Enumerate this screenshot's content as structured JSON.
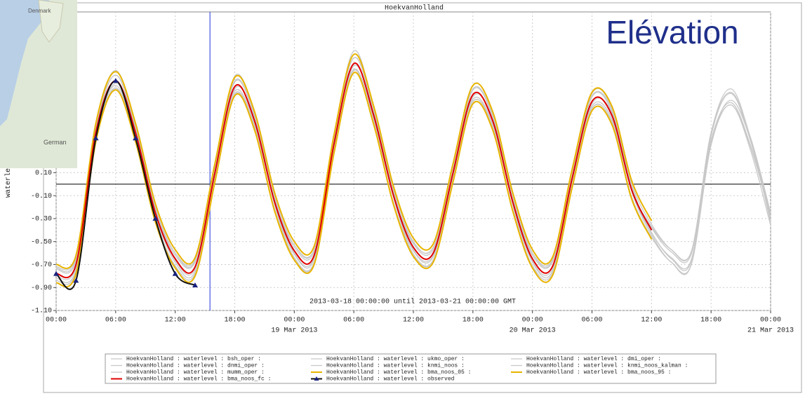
{
  "chart_data": {
    "type": "line",
    "title": "HoekvanHolland",
    "overlay_title": "Elévation",
    "y_label": "waterlevel",
    "annotation": "2013-03-18 00:00:00 until 2013-03-21 00:00:00 GMT",
    "x": [
      "2013-03-18 00:00",
      "2013-03-18 02:00",
      "2013-03-18 04:00",
      "2013-03-18 06:00",
      "2013-03-18 08:00",
      "2013-03-18 10:00",
      "2013-03-18 12:00",
      "2013-03-18 14:00",
      "2013-03-18 16:00",
      "2013-03-18 18:00",
      "2013-03-18 20:00",
      "2013-03-18 22:00",
      "2013-03-19 00:00",
      "2013-03-19 02:00",
      "2013-03-19 04:00",
      "2013-03-19 06:00",
      "2013-03-19 08:00",
      "2013-03-19 10:00",
      "2013-03-19 12:00",
      "2013-03-19 14:00",
      "2013-03-19 16:00",
      "2013-03-19 18:00",
      "2013-03-19 20:00",
      "2013-03-19 22:00",
      "2013-03-20 00:00",
      "2013-03-20 02:00",
      "2013-03-20 04:00",
      "2013-03-20 06:00",
      "2013-03-20 08:00",
      "2013-03-20 10:00",
      "2013-03-20 12:00",
      "2013-03-20 14:00",
      "2013-03-20 16:00",
      "2013-03-20 18:00",
      "2013-03-20 20:00",
      "2013-03-20 22:00",
      "2013-03-21 00:00"
    ],
    "xlim": [
      "2013-03-18 00:00",
      "2013-03-21 00:00"
    ],
    "xticks": [
      {
        "value": "2013-03-18 00:00",
        "label": "00:00"
      },
      {
        "value": "2013-03-18 06:00",
        "label": "06:00"
      },
      {
        "value": "2013-03-18 12:00",
        "label": "12:00"
      },
      {
        "value": "2013-03-18 18:00",
        "label": "18:00"
      },
      {
        "value": "2013-03-19 00:00",
        "label": "00:00"
      },
      {
        "value": "2013-03-19 06:00",
        "label": "06:00"
      },
      {
        "value": "2013-03-19 12:00",
        "label": "12:00"
      },
      {
        "value": "2013-03-19 18:00",
        "label": "18:00"
      },
      {
        "value": "2013-03-20 00:00",
        "label": "00:00"
      },
      {
        "value": "2013-03-20 06:00",
        "label": "06:00"
      },
      {
        "value": "2013-03-20 12:00",
        "label": "12:00"
      },
      {
        "value": "2013-03-20 18:00",
        "label": "18:00"
      },
      {
        "value": "2013-03-21 00:00",
        "label": "00:00"
      }
    ],
    "x_date_labels": [
      {
        "value": "2013-03-19 00:00",
        "label": "19 Mar 2013"
      },
      {
        "value": "2013-03-20 00:00",
        "label": "20 Mar 2013"
      },
      {
        "value": "2013-03-21 00:00",
        "label": "21 Mar 2013"
      }
    ],
    "ylim": [
      -1.1,
      1.5
    ],
    "yticks": [
      {
        "value": -1.1,
        "label": "-1.10"
      },
      {
        "value": -0.9,
        "label": "-0.90"
      },
      {
        "value": -0.7,
        "label": "-0.70"
      },
      {
        "value": -0.5,
        "label": "-0.50"
      },
      {
        "value": -0.3,
        "label": "-0.30"
      },
      {
        "value": -0.1,
        "label": "-0.10"
      },
      {
        "value": 0.1,
        "label": "0.10"
      }
    ],
    "grid": true,
    "reference_line": 0,
    "now_marker": "2013-03-18 15:30",
    "now_color": "#2233dd",
    "series": [
      {
        "name": "HoekvanHolland : waterlevel : bsh_oper :",
        "color": "#c8c8c8",
        "values": [
          -0.82,
          -0.74,
          0.47,
          0.95,
          0.47,
          -0.26,
          -0.68,
          -0.76,
          0.11,
          0.89,
          0.58,
          -0.16,
          -0.61,
          -0.65,
          0.37,
          1.1,
          0.63,
          -0.11,
          -0.58,
          -0.63,
          0.11,
          0.82,
          0.58,
          -0.16,
          -0.68,
          -0.76,
          0.05,
          0.76,
          0.63,
          -0.05,
          -0.42,
          -0.65,
          -0.67,
          0.42,
          0.79,
          0.37,
          -0.32
        ]
      },
      {
        "name": "HoekvanHolland : waterlevel : ukmo_oper :",
        "color": "#c8c8c8",
        "values": [
          -0.74,
          -0.67,
          0.43,
          0.86,
          0.43,
          -0.24,
          -0.62,
          -0.68,
          0.1,
          0.81,
          0.52,
          -0.14,
          -0.55,
          -0.59,
          0.33,
          1.0,
          0.57,
          -0.1,
          -0.52,
          -0.57,
          0.1,
          0.74,
          0.52,
          -0.14,
          -0.62,
          -0.68,
          0.05,
          0.68,
          0.57,
          -0.05,
          -0.38,
          -0.59,
          -0.61,
          0.38,
          0.71,
          0.33,
          -0.29
        ]
      },
      {
        "name": "HoekvanHolland : waterlevel : dmi_oper :",
        "color": "#c8c8c8",
        "values": [
          -0.84,
          -0.76,
          0.39,
          0.84,
          0.39,
          -0.31,
          -0.71,
          -0.78,
          0.04,
          0.79,
          0.49,
          -0.21,
          -0.64,
          -0.68,
          0.29,
          0.99,
          0.54,
          -0.16,
          -0.61,
          -0.66,
          0.04,
          0.72,
          0.49,
          -0.21,
          -0.71,
          -0.78,
          -0.01,
          0.66,
          0.54,
          -0.11,
          -0.46,
          -0.68,
          -0.7,
          0.34,
          0.69,
          0.29,
          -0.36
        ]
      },
      {
        "name": "HoekvanHolland : waterlevel : dnmi_oper :",
        "color": "#c8c8c8",
        "values": [
          -0.73,
          -0.65,
          0.5,
          0.95,
          0.5,
          -0.2,
          -0.6,
          -0.67,
          0.15,
          0.9,
          0.6,
          -0.1,
          -0.53,
          -0.57,
          0.4,
          1.1,
          0.65,
          -0.05,
          -0.5,
          -0.55,
          0.15,
          0.83,
          0.6,
          -0.1,
          -0.6,
          -0.67,
          0.1,
          0.77,
          0.65,
          0.0,
          -0.35,
          -0.57,
          -0.59,
          0.45,
          0.8,
          0.4,
          -0.25
        ]
      },
      {
        "name": "HoekvanHolland : waterlevel : knmi_noos :",
        "color": "#c8c8c8",
        "values": [
          -0.86,
          -0.77,
          0.5,
          0.99,
          0.5,
          -0.28,
          -0.72,
          -0.79,
          0.11,
          0.94,
          0.61,
          -0.17,
          -0.64,
          -0.68,
          0.39,
          1.16,
          0.66,
          -0.11,
          -0.61,
          -0.66,
          0.11,
          0.86,
          0.61,
          -0.17,
          -0.72,
          -0.79,
          0.06,
          0.79,
          0.66,
          -0.06,
          -0.44,
          -0.68,
          -0.7,
          0.44,
          0.83,
          0.39,
          -0.33
        ]
      },
      {
        "name": "HoekvanHolland : waterlevel : knmi_noos_kalman :",
        "color": "#c8c8c8",
        "values": [
          -0.72,
          -0.64,
          0.41,
          0.83,
          0.41,
          -0.23,
          -0.6,
          -0.66,
          0.09,
          0.78,
          0.51,
          -0.14,
          -0.53,
          -0.57,
          0.32,
          0.97,
          0.55,
          -0.09,
          -0.51,
          -0.55,
          0.09,
          0.72,
          0.51,
          -0.14,
          -0.6,
          -0.66,
          0.05,
          0.66,
          0.55,
          -0.05,
          -0.37,
          -0.57,
          -0.59,
          0.37,
          0.69,
          0.32,
          -0.28
        ]
      },
      {
        "name": "HoekvanHolland : waterlevel : mumm_oper :",
        "color": "#c8c8c8",
        "values": [
          -0.8,
          -0.72,
          0.4,
          0.88,
          0.47,
          -0.22,
          -0.66,
          -0.74,
          0.06,
          0.83,
          0.57,
          -0.12,
          -0.6,
          -0.64,
          0.31,
          1.03,
          0.62,
          -0.07,
          -0.57,
          -0.62,
          0.06,
          0.76,
          0.57,
          -0.12,
          -0.67,
          -0.74,
          0.01,
          0.7,
          0.62,
          -0.02,
          -0.42,
          -0.64,
          -0.66,
          0.36,
          0.73,
          0.38,
          -0.28
        ]
      },
      {
        "name": "HoekvanHolland : waterlevel : bma_noos_05 :",
        "color": "#e8b400",
        "width": 2,
        "values": [
          -0.86,
          -0.78,
          0.37,
          0.82,
          0.37,
          -0.33,
          -0.73,
          -0.8,
          0.02,
          0.77,
          0.47,
          -0.23,
          -0.66,
          -0.7,
          0.27,
          0.97,
          0.52,
          -0.18,
          -0.63,
          -0.68,
          0.02,
          0.7,
          0.47,
          -0.23,
          -0.73,
          -0.8,
          -0.03,
          0.64,
          0.52,
          -0.13,
          -0.48,
          null,
          null,
          null,
          null,
          null,
          null
        ]
      },
      {
        "name": "HoekvanHolland : waterlevel : bma_noos_95 :",
        "color": "#e8b400",
        "width": 2,
        "values": [
          -0.7,
          -0.62,
          0.53,
          0.98,
          0.53,
          -0.17,
          -0.57,
          -0.64,
          0.18,
          0.93,
          0.63,
          -0.07,
          -0.5,
          -0.54,
          0.43,
          1.13,
          0.68,
          -0.02,
          -0.47,
          -0.52,
          0.18,
          0.86,
          0.63,
          -0.07,
          -0.57,
          -0.64,
          0.13,
          0.8,
          0.68,
          0.03,
          -0.32,
          null,
          null,
          null,
          null,
          null,
          null
        ]
      },
      {
        "name": "HoekvanHolland : waterlevel : bma_noos_fc :",
        "color": "#e00000",
        "width": 2,
        "values": [
          -0.78,
          -0.7,
          0.45,
          0.9,
          0.45,
          -0.25,
          -0.65,
          -0.72,
          0.1,
          0.85,
          0.55,
          -0.15,
          -0.58,
          -0.62,
          0.35,
          1.05,
          0.6,
          -0.1,
          -0.55,
          -0.6,
          0.1,
          0.78,
          0.55,
          -0.15,
          -0.65,
          -0.72,
          0.05,
          0.72,
          0.6,
          -0.05,
          -0.4,
          null,
          null,
          null,
          null,
          null,
          null
        ]
      },
      {
        "name": "HoekvanHolland : waterlevel : observed",
        "color": "#111111",
        "marker_color": "#1a237e",
        "marker": "triangle",
        "width": 2,
        "values": [
          -0.78,
          -0.84,
          0.4,
          0.9,
          0.4,
          -0.3,
          -0.78,
          -0.88,
          null,
          null,
          null,
          null,
          null,
          null,
          null,
          null,
          null,
          null,
          null,
          null,
          null,
          null,
          null,
          null,
          null,
          null,
          null,
          null,
          null,
          null,
          null,
          null,
          null,
          null,
          null,
          null,
          null
        ]
      }
    ],
    "legend_columns": 3,
    "map_labels": [
      "Denmark",
      "German"
    ]
  }
}
